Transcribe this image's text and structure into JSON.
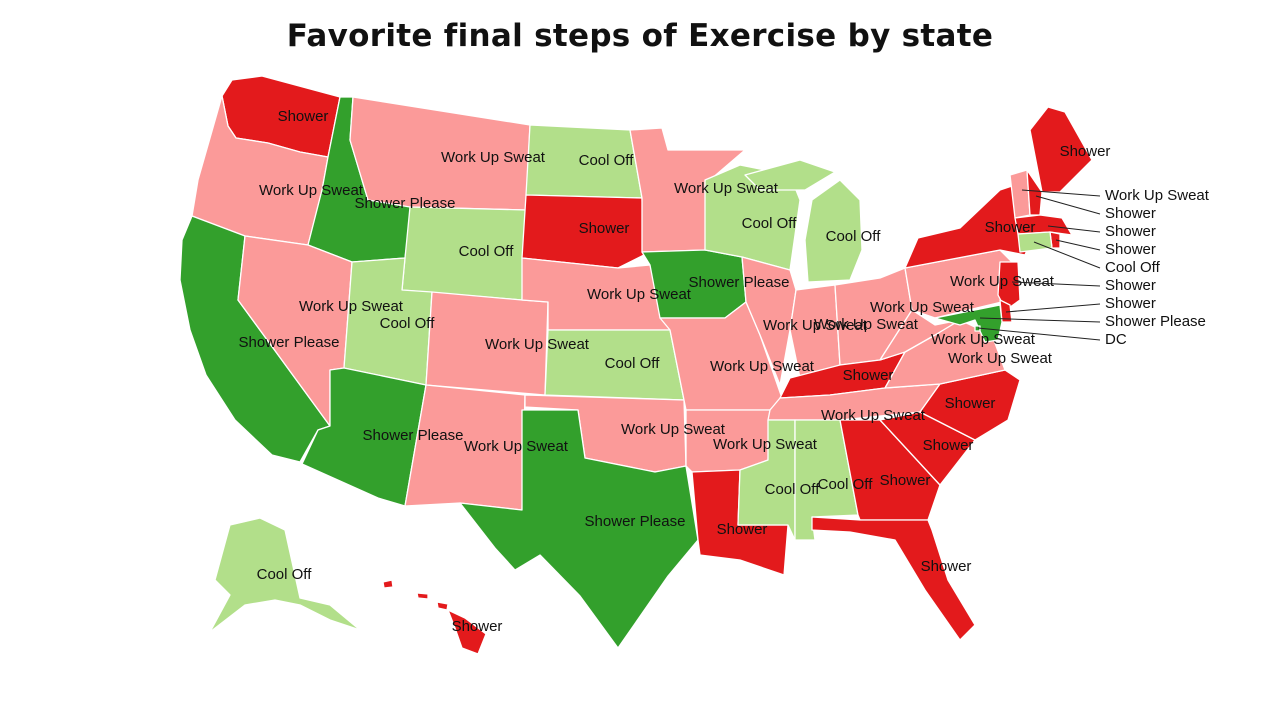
{
  "title": "Favorite final steps of Exercise by state",
  "legend_colors": {
    "Shower": "#e31a1c",
    "Work Up Sweat": "#fb9a99",
    "Shower Please": "#33a02c",
    "Cool Off": "#b2df8a"
  },
  "states": [
    {
      "id": "WA",
      "category": "Shower"
    },
    {
      "id": "OR",
      "category": "Work Up Sweat"
    },
    {
      "id": "CA",
      "category": "Shower Please"
    },
    {
      "id": "ID",
      "category": "Shower Please"
    },
    {
      "id": "NV",
      "category": "Work Up Sweat"
    },
    {
      "id": "MT",
      "category": "Work Up Sweat"
    },
    {
      "id": "WY",
      "category": "Cool Off"
    },
    {
      "id": "UT",
      "category": "Cool Off"
    },
    {
      "id": "AZ",
      "category": "Shower Please"
    },
    {
      "id": "CO",
      "category": "Work Up Sweat"
    },
    {
      "id": "NM",
      "category": "Work Up Sweat"
    },
    {
      "id": "ND",
      "category": "Cool Off"
    },
    {
      "id": "SD",
      "category": "Shower"
    },
    {
      "id": "NE",
      "category": "Work Up Sweat"
    },
    {
      "id": "KS",
      "category": "Cool Off"
    },
    {
      "id": "OK",
      "category": "Work Up Sweat"
    },
    {
      "id": "TX",
      "category": "Shower Please"
    },
    {
      "id": "MN",
      "category": "Work Up Sweat"
    },
    {
      "id": "IA",
      "category": "Shower Please"
    },
    {
      "id": "MO",
      "category": "Work Up Sweat"
    },
    {
      "id": "AR",
      "category": "Work Up Sweat"
    },
    {
      "id": "LA",
      "category": "Shower"
    },
    {
      "id": "WI",
      "category": "Cool Off"
    },
    {
      "id": "MI",
      "category": "Cool Off"
    },
    {
      "id": "IL",
      "category": "Work Up Sweat"
    },
    {
      "id": "IN",
      "category": "Work Up Sweat"
    },
    {
      "id": "OH",
      "category": "Work Up Sweat"
    },
    {
      "id": "KY",
      "category": "Shower"
    },
    {
      "id": "TN",
      "category": "Work Up Sweat"
    },
    {
      "id": "MS",
      "category": "Cool Off"
    },
    {
      "id": "AL",
      "category": "Cool Off"
    },
    {
      "id": "GA",
      "category": "Shower"
    },
    {
      "id": "FL",
      "category": "Shower"
    },
    {
      "id": "SC",
      "category": "Shower"
    },
    {
      "id": "NC",
      "category": "Shower"
    },
    {
      "id": "VA",
      "category": "Work Up Sweat"
    },
    {
      "id": "WV",
      "category": "Work Up Sweat"
    },
    {
      "id": "PA",
      "category": "Work Up Sweat"
    },
    {
      "id": "NY",
      "category": "Shower"
    },
    {
      "id": "ME",
      "category": "Shower"
    },
    {
      "id": "AK",
      "category": "Cool Off"
    },
    {
      "id": "HI",
      "category": "Shower"
    },
    {
      "id": "VT",
      "category": "Work Up Sweat"
    },
    {
      "id": "NH",
      "category": "Shower"
    },
    {
      "id": "MA",
      "category": "Shower"
    },
    {
      "id": "RI",
      "category": "Shower"
    },
    {
      "id": "CT",
      "category": "Cool Off"
    },
    {
      "id": "NJ",
      "category": "Shower"
    },
    {
      "id": "DE",
      "category": "Shower"
    },
    {
      "id": "MD",
      "category": "Shower Please"
    },
    {
      "id": "DC",
      "category": "DC"
    }
  ],
  "labels": [
    {
      "text": "Shower"
    },
    {
      "text": "Work Up Sweat"
    },
    {
      "text": "Shower Please"
    },
    {
      "text": "Shower Please"
    },
    {
      "text": "Work Up Sweat"
    },
    {
      "text": "Work Up Sweat"
    },
    {
      "text": "Cool Off"
    },
    {
      "text": "Cool Off"
    },
    {
      "text": "Shower Please"
    },
    {
      "text": "Work Up Sweat"
    },
    {
      "text": "Work Up Sweat"
    },
    {
      "text": "Cool Off"
    },
    {
      "text": "Shower"
    },
    {
      "text": "Work Up Sweat"
    },
    {
      "text": "Cool Off"
    },
    {
      "text": "Work Up Sweat"
    },
    {
      "text": "Shower Please"
    },
    {
      "text": "Work Up Sweat"
    },
    {
      "text": "Shower Please"
    },
    {
      "text": "Work Up Sweat"
    },
    {
      "text": "Work Up Sweat"
    },
    {
      "text": "Shower"
    },
    {
      "text": "Cool Off"
    },
    {
      "text": "Cool Off"
    },
    {
      "text": "Work Up Sweat"
    },
    {
      "text": "Work Up Sweat"
    },
    {
      "text": "Work Up Sweat"
    },
    {
      "text": "Shower"
    },
    {
      "text": "Work Up Sweat"
    },
    {
      "text": "Cool Off"
    },
    {
      "text": "Cool Off"
    },
    {
      "text": "Shower"
    },
    {
      "text": "Shower"
    },
    {
      "text": "Shower"
    },
    {
      "text": "Shower"
    },
    {
      "text": "Work Up Sweat"
    },
    {
      "text": "Work Up Sweat"
    },
    {
      "text": "Work Up Sweat"
    },
    {
      "text": "Shower"
    },
    {
      "text": "Shower"
    },
    {
      "text": "Cool Off"
    },
    {
      "text": "Shower"
    }
  ],
  "callouts": [
    {
      "text": "Work Up Sweat"
    },
    {
      "text": "Shower"
    },
    {
      "text": "Shower"
    },
    {
      "text": "Shower"
    },
    {
      "text": "Cool Off"
    },
    {
      "text": "Shower"
    },
    {
      "text": "Shower"
    },
    {
      "text": "Shower Please"
    },
    {
      "text": "DC"
    }
  ]
}
